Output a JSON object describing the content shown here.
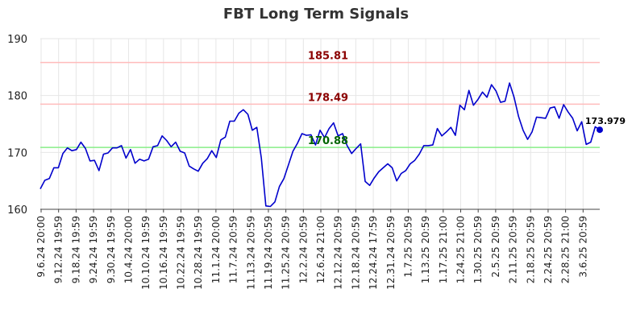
{
  "chart_data": {
    "type": "line",
    "title": "FBT Long Term Signals",
    "xlabel": "",
    "ylabel": "",
    "ylim": [
      160,
      190
    ],
    "y_ticks": [
      160,
      170,
      180,
      190
    ],
    "grid": true,
    "x_tick_labels": [
      "9.6.24 20:00",
      "9.12.24 19:59",
      "9.18.24 19:59",
      "9.24.24 19:59",
      "9.30.24 19:59",
      "10.4.24 20:00",
      "10.10.24 19:59",
      "10.16.24 19:59",
      "10.22.24 19:59",
      "10.28.24 19:59",
      "11.1.24 20:00",
      "11.7.24 20:59",
      "11.13.24 20:59",
      "11.19.24 20:59",
      "11.25.24 20:59",
      "12.2.24 20:59",
      "12.6.24 21:00",
      "12.12.24 20:59",
      "12.18.24 20:59",
      "12.24.24 17:59",
      "12.31.24 20:59",
      "1.7.25 20:59",
      "1.13.25 20:59",
      "1.17.25 21:00",
      "1.24.25 21:00",
      "1.30.25 20:59",
      "2.5.25 20:59",
      "2.11.25 20:59",
      "2.18.25 20:59",
      "2.24.25 20:59",
      "2.28.25 21:00",
      "3.6.25 20:59"
    ],
    "levels": [
      {
        "value": 185.81,
        "label": "185.81",
        "line_color": "#ffbbbb",
        "label_color": "#8b0000"
      },
      {
        "value": 178.49,
        "label": "178.49",
        "line_color": "#ffbbbb",
        "label_color": "#8b0000"
      },
      {
        "value": 170.88,
        "label": "170.88",
        "line_color": "#88ee88",
        "label_color": "#006400"
      }
    ],
    "series": [
      {
        "color": "#0000cc",
        "values": [
          163.6,
          165.1,
          165.4,
          167.3,
          167.3,
          169.8,
          170.8,
          170.3,
          170.5,
          171.8,
          170.7,
          168.5,
          168.6,
          166.8,
          169.7,
          169.9,
          170.8,
          170.8,
          171.2,
          169.0,
          170.5,
          168.1,
          168.8,
          168.5,
          168.8,
          171.0,
          171.2,
          172.9,
          172.1,
          171.0,
          171.8,
          170.2,
          169.9,
          167.6,
          167.1,
          166.7,
          168.1,
          168.9,
          170.3,
          169.1,
          172.2,
          172.7,
          175.5,
          175.5,
          176.9,
          177.5,
          176.7,
          173.9,
          174.4,
          169.0,
          160.6,
          160.5,
          161.3,
          164.0,
          165.4,
          167.8,
          170.2,
          171.6,
          173.3,
          173.0,
          173.1,
          171.3,
          173.9,
          172.6,
          174.2,
          175.2,
          172.9,
          173.3,
          171.2,
          169.8,
          170.7,
          171.5,
          164.9,
          164.2,
          165.5,
          166.6,
          167.3,
          168.0,
          167.3,
          165.0,
          166.3,
          166.8,
          168.0,
          168.6,
          169.7,
          171.2,
          171.2,
          171.3,
          174.2,
          172.9,
          173.6,
          174.4,
          173.0,
          178.3,
          177.5,
          180.9,
          178.3,
          179.3,
          180.6,
          179.7,
          181.9,
          180.8,
          178.8,
          179.0,
          182.2,
          179.7,
          176.3,
          173.9,
          172.3,
          173.6,
          176.2,
          176.1,
          176.0,
          177.8,
          178.0,
          176.0,
          178.4,
          177.1,
          176.0,
          173.8,
          175.4,
          171.4,
          171.8,
          174.5,
          173.979
        ]
      }
    ],
    "last_value": {
      "value": 173.979,
      "label": "173.979",
      "color": "#0000cc"
    }
  }
}
